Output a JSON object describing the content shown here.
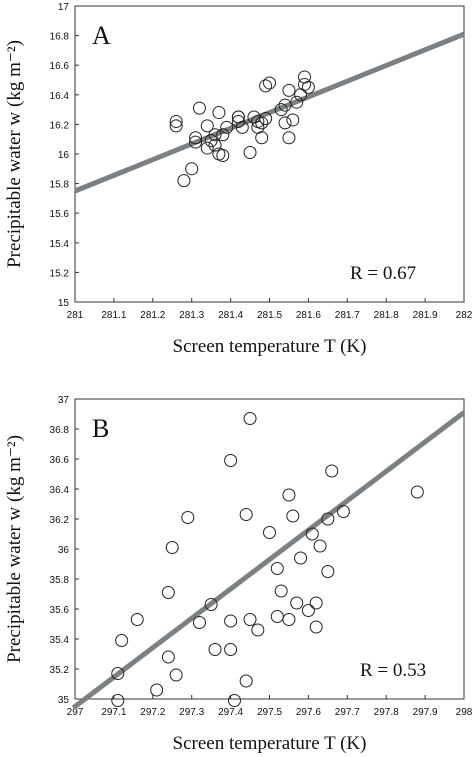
{
  "chart_data": [
    {
      "type": "scatter",
      "panel": "A",
      "xlabel": "Screen temperature T (K)",
      "ylabel": "Precipitable water w (kg m⁻²)",
      "xlim": [
        281,
        282
      ],
      "ylim": [
        15,
        17
      ],
      "xticks": [
        "281",
        "281.1",
        "281.2",
        "281.3",
        "281.4",
        "281.5",
        "281.6",
        "281.7",
        "281.8",
        "281.9",
        "282"
      ],
      "yticks": [
        "15",
        "15.2",
        "15.4",
        "15.6",
        "15.8",
        "16",
        "16.2",
        "16.4",
        "16.6",
        "16.8",
        "17"
      ],
      "annotation": "R = 0.67",
      "fit_line": {
        "x": [
          281,
          282
        ],
        "y": [
          15.75,
          16.81
        ]
      },
      "points": [
        [
          281.26,
          16.22
        ],
        [
          281.26,
          16.19
        ],
        [
          281.28,
          15.82
        ],
        [
          281.3,
          15.9
        ],
        [
          281.31,
          16.11
        ],
        [
          281.31,
          16.08
        ],
        [
          281.32,
          16.31
        ],
        [
          281.34,
          16.04
        ],
        [
          281.34,
          16.19
        ],
        [
          281.35,
          16.09
        ],
        [
          281.36,
          16.06
        ],
        [
          281.36,
          16.13
        ],
        [
          281.37,
          16.28
        ],
        [
          281.37,
          16.0
        ],
        [
          281.38,
          15.99
        ],
        [
          281.38,
          16.13
        ],
        [
          281.39,
          16.18
        ],
        [
          281.42,
          16.25
        ],
        [
          281.42,
          16.25
        ],
        [
          281.42,
          16.22
        ],
        [
          281.43,
          16.18
        ],
        [
          281.45,
          16.01
        ],
        [
          281.46,
          16.25
        ],
        [
          281.47,
          16.18
        ],
        [
          281.47,
          16.22
        ],
        [
          281.48,
          16.21
        ],
        [
          281.48,
          16.11
        ],
        [
          281.49,
          16.24
        ],
        [
          281.49,
          16.46
        ],
        [
          281.5,
          16.48
        ],
        [
          281.53,
          16.3
        ],
        [
          281.54,
          16.21
        ],
        [
          281.54,
          16.33
        ],
        [
          281.55,
          16.11
        ],
        [
          281.55,
          16.43
        ],
        [
          281.56,
          16.23
        ],
        [
          281.57,
          16.35
        ],
        [
          281.58,
          16.4
        ],
        [
          281.59,
          16.52
        ],
        [
          281.59,
          16.47
        ],
        [
          281.6,
          16.45
        ]
      ]
    },
    {
      "type": "scatter",
      "panel": "B",
      "xlabel": "Screen temperature T (K)",
      "ylabel": "Precipitable water w (kg m⁻²)",
      "xlim": [
        297,
        298
      ],
      "ylim": [
        35,
        37
      ],
      "xticks": [
        "297",
        "297.1",
        "297.2",
        "297.3",
        "297.4",
        "297.5",
        "297.6",
        "297.7",
        "297.8",
        "297.9",
        "298"
      ],
      "yticks": [
        "35",
        "35.2",
        "35.4",
        "35.6",
        "35.8",
        "36",
        "36.2",
        "36.4",
        "36.6",
        "36.8",
        "37"
      ],
      "annotation": "R = 0.53",
      "fit_line": {
        "x": [
          297,
          298
        ],
        "y": [
          34.95,
          36.91
        ]
      },
      "points": [
        [
          297.11,
          34.99
        ],
        [
          297.11,
          35.17
        ],
        [
          297.12,
          35.39
        ],
        [
          297.16,
          35.53
        ],
        [
          297.21,
          35.06
        ],
        [
          297.24,
          35.28
        ],
        [
          297.24,
          35.71
        ],
        [
          297.25,
          36.01
        ],
        [
          297.26,
          35.16
        ],
        [
          297.29,
          36.21
        ],
        [
          297.32,
          35.51
        ],
        [
          297.35,
          35.63
        ],
        [
          297.36,
          35.33
        ],
        [
          297.4,
          36.59
        ],
        [
          297.4,
          35.52
        ],
        [
          297.4,
          35.33
        ],
        [
          297.41,
          34.99
        ],
        [
          297.44,
          36.23
        ],
        [
          297.44,
          35.12
        ],
        [
          297.45,
          36.87
        ],
        [
          297.45,
          35.53
        ],
        [
          297.47,
          35.46
        ],
        [
          297.5,
          36.11
        ],
        [
          297.52,
          35.87
        ],
        [
          297.52,
          35.55
        ],
        [
          297.53,
          35.72
        ],
        [
          297.55,
          36.36
        ],
        [
          297.55,
          35.53
        ],
        [
          297.56,
          36.22
        ],
        [
          297.57,
          35.64
        ],
        [
          297.58,
          35.94
        ],
        [
          297.6,
          35.59
        ],
        [
          297.61,
          36.1
        ],
        [
          297.62,
          35.64
        ],
        [
          297.62,
          35.48
        ],
        [
          297.63,
          36.02
        ],
        [
          297.65,
          36.2
        ],
        [
          297.65,
          35.85
        ],
        [
          297.66,
          36.52
        ],
        [
          297.69,
          36.25
        ],
        [
          297.88,
          36.38
        ]
      ]
    }
  ]
}
